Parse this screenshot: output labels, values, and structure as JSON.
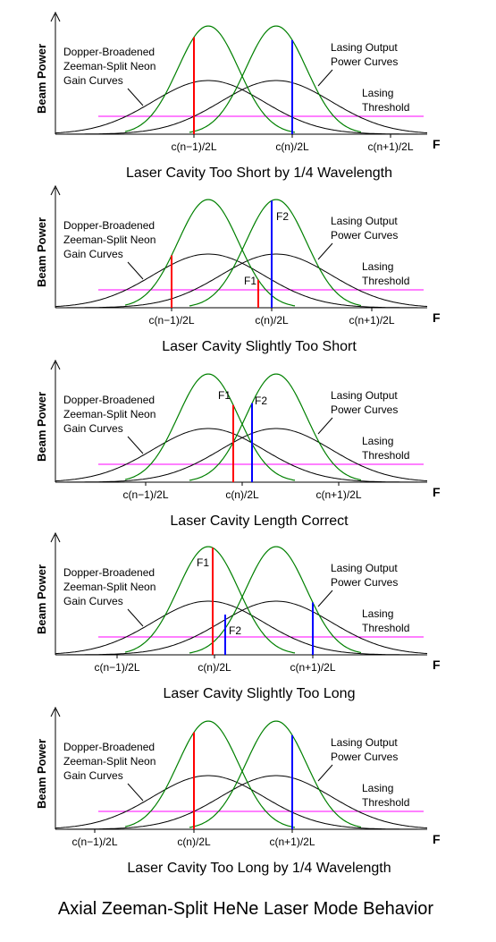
{
  "diagram": {
    "title": "Axial Zeeman-Split HeNe Laser Mode Behavior",
    "y_axis_label": "Beam Power",
    "x_axis_label": "F",
    "labels": {
      "gain_line1": "Dopper-Broadened",
      "gain_line2": "Zeeman-Split Neon",
      "gain_line3": "Gain Curves",
      "output_line1": "Lasing Output",
      "output_line2": "Power Curves",
      "threshold_line1": "Lasing",
      "threshold_line2": "Threshold"
    },
    "colors": {
      "gain_curve": "#000000",
      "output_curve": "#008000",
      "threshold": "#ff00ff",
      "mode_f1": "#ff0000",
      "mode_f2": "#0000ff"
    },
    "panels": [
      {
        "caption": "Laser Cavity Too Short by 1/4 Wavelength",
        "ticks": [
          "c(n−1)/2L",
          "c(n)/2L",
          "c(n+1)/2L"
        ],
        "mode_f1": "",
        "mode_f2": ""
      },
      {
        "caption": "Laser Cavity Slightly Too Short",
        "ticks": [
          "c(n−1)/2L",
          "c(n)/2L",
          "c(n+1)/2L"
        ],
        "mode_f1": "F1",
        "mode_f2": "F2"
      },
      {
        "caption": "Laser Cavity Length Correct",
        "ticks": [
          "c(n−1)/2L",
          "c(n)/2L",
          "c(n+1)/2L"
        ],
        "mode_f1": "F1",
        "mode_f2": "F2"
      },
      {
        "caption": "Laser Cavity Slightly Too Long",
        "ticks": [
          "c(n−1)/2L",
          "c(n)/2L",
          "c(n+1)/2L"
        ],
        "mode_f1": "F1",
        "mode_f2": "F2"
      },
      {
        "caption": "Laser Cavity Too Long by 1/4 Wavelength",
        "ticks": [
          "c(n−1)/2L",
          "c(n)/2L",
          "c(n+1)/2L"
        ],
        "mode_f1": "",
        "mode_f2": ""
      }
    ]
  }
}
